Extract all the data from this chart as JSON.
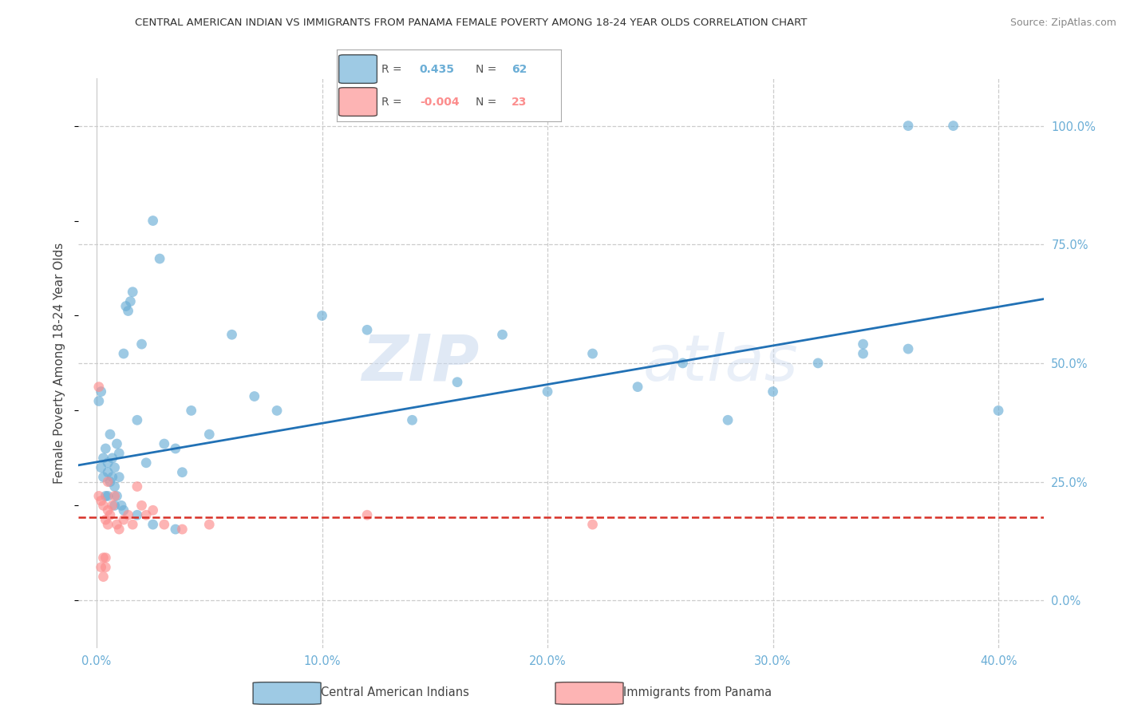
{
  "title": "CENTRAL AMERICAN INDIAN VS IMMIGRANTS FROM PANAMA FEMALE POVERTY AMONG 18-24 YEAR OLDS CORRELATION CHART",
  "source": "Source: ZipAtlas.com",
  "xlabel_ticks": [
    "0.0%",
    "",
    "10.0%",
    "",
    "20.0%",
    "",
    "30.0%",
    "",
    "40.0%"
  ],
  "xlabel_tick_vals": [
    0.0,
    0.05,
    0.1,
    0.15,
    0.2,
    0.25,
    0.3,
    0.35,
    0.4
  ],
  "ylabel": "Female Poverty Among 18-24 Year Olds",
  "ylabel_ticks_right": [
    "100.0%",
    "75.0%",
    "50.0%",
    "25.0%",
    "0.0%"
  ],
  "ylabel_tick_vals_right": [
    1.0,
    0.75,
    0.5,
    0.25,
    0.0
  ],
  "xlim": [
    -0.008,
    0.42
  ],
  "ylim": [
    -0.1,
    1.1
  ],
  "blue_r_val": "0.435",
  "blue_n_val": "62",
  "pink_r_val": "-0.004",
  "pink_n_val": "23",
  "blue_scatter_x": [
    0.001,
    0.002,
    0.002,
    0.003,
    0.003,
    0.004,
    0.004,
    0.005,
    0.005,
    0.006,
    0.006,
    0.007,
    0.007,
    0.008,
    0.008,
    0.009,
    0.009,
    0.01,
    0.01,
    0.011,
    0.012,
    0.013,
    0.014,
    0.015,
    0.016,
    0.018,
    0.02,
    0.022,
    0.025,
    0.028,
    0.03,
    0.035,
    0.038,
    0.042,
    0.05,
    0.06,
    0.07,
    0.08,
    0.1,
    0.12,
    0.14,
    0.16,
    0.18,
    0.2,
    0.22,
    0.24,
    0.26,
    0.28,
    0.3,
    0.32,
    0.34,
    0.36,
    0.38,
    0.4,
    0.34,
    0.36,
    0.005,
    0.008,
    0.012,
    0.018,
    0.025,
    0.035
  ],
  "blue_scatter_y": [
    0.42,
    0.44,
    0.28,
    0.3,
    0.26,
    0.32,
    0.22,
    0.27,
    0.29,
    0.25,
    0.35,
    0.26,
    0.3,
    0.28,
    0.24,
    0.33,
    0.22,
    0.31,
    0.26,
    0.2,
    0.52,
    0.62,
    0.61,
    0.63,
    0.65,
    0.38,
    0.54,
    0.29,
    0.8,
    0.72,
    0.33,
    0.32,
    0.27,
    0.4,
    0.35,
    0.56,
    0.43,
    0.4,
    0.6,
    0.57,
    0.38,
    0.46,
    0.56,
    0.44,
    0.52,
    0.45,
    0.5,
    0.38,
    0.44,
    0.5,
    0.52,
    1.0,
    1.0,
    0.4,
    0.54,
    0.53,
    0.22,
    0.2,
    0.19,
    0.18,
    0.16,
    0.15
  ],
  "pink_scatter_x": [
    0.001,
    0.002,
    0.003,
    0.004,
    0.005,
    0.005,
    0.006,
    0.007,
    0.008,
    0.009,
    0.01,
    0.012,
    0.014,
    0.016,
    0.018,
    0.02,
    0.022,
    0.025,
    0.03,
    0.038,
    0.05,
    0.12,
    0.22
  ],
  "pink_scatter_y": [
    0.22,
    0.21,
    0.2,
    0.17,
    0.19,
    0.16,
    0.18,
    0.2,
    0.22,
    0.16,
    0.15,
    0.17,
    0.18,
    0.16,
    0.24,
    0.2,
    0.18,
    0.19,
    0.16,
    0.15,
    0.16,
    0.18,
    0.16
  ],
  "pink_extra_x": [
    0.001,
    0.002,
    0.003,
    0.004,
    0.003,
    0.004,
    0.005
  ],
  "pink_extra_y": [
    0.45,
    0.07,
    0.05,
    0.07,
    0.09,
    0.09,
    0.25
  ],
  "blue_line_x0": -0.008,
  "blue_line_x1": 0.42,
  "blue_line_y0": 0.285,
  "blue_line_y1": 0.635,
  "pink_line_y": 0.175,
  "grid_color": "#cccccc",
  "bg_color": "#ffffff",
  "blue_color": "#6baed6",
  "pink_color": "#fc8d8d",
  "blue_line_color": "#2171b5",
  "pink_line_color": "#d73027",
  "scatter_alpha": 0.65,
  "scatter_size": 85,
  "watermark_zip": "ZIP",
  "watermark_atlas": "atlas"
}
